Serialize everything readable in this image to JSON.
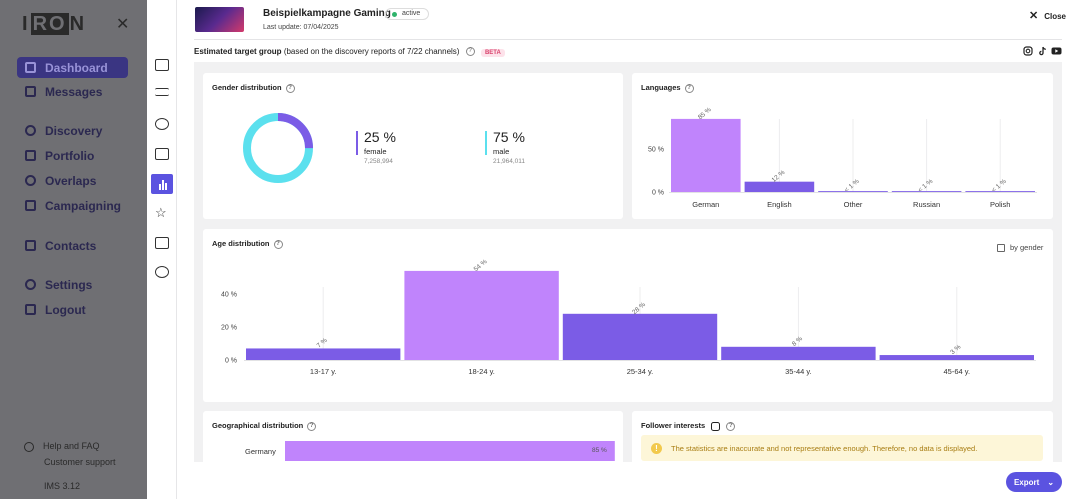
{
  "sidebar": {
    "logo_left": "I",
    "logo_mid": "RO",
    "logo_right": "N",
    "nav": [
      {
        "label": "Dashboard",
        "icon": "dashboard-icon"
      },
      {
        "label": "Messages",
        "icon": "messages-icon"
      },
      {
        "label": "Discovery",
        "icon": "discovery-icon"
      },
      {
        "label": "Portfolio",
        "icon": "portfolio-icon"
      },
      {
        "label": "Overlaps",
        "icon": "overlaps-icon"
      },
      {
        "label": "Campaigning",
        "icon": "campaigning-icon"
      },
      {
        "label": "Contacts",
        "icon": "contacts-icon"
      },
      {
        "label": "Settings",
        "icon": "settings-icon"
      },
      {
        "label": "Logout",
        "icon": "logout-icon"
      }
    ],
    "help": "Help and FAQ",
    "support": "Customer support",
    "version": "IMS 3.12"
  },
  "header": {
    "campaign_title": "Beispielkampagne Gaming",
    "status": "active",
    "last_update": "Last update: 07/04/2025",
    "close": "Close",
    "target_group_bold": "Estimated target group",
    "target_group_note": "(based on the discovery reports of 7/22 channels)",
    "beta": "BETA"
  },
  "gender": {
    "title": "Gender distribution",
    "female_pct": "25 %",
    "female_label": "female",
    "female_count": "7,258,994",
    "male_pct": "75 %",
    "male_label": "male",
    "male_count": "21,964,011",
    "female_color": "#7b5ce6",
    "male_color": "#5be0ee"
  },
  "languages_title": "Languages",
  "age_title": "Age distribution",
  "by_gender": "by gender",
  "geo": {
    "title": "Geographical distribution",
    "country": "Germany",
    "pct": "85 %"
  },
  "follower": {
    "title": "Follower interests",
    "warning": "The statistics are inaccurate and not representative enough. Therefore, no data is displayed."
  },
  "export": "Export",
  "chart_data": [
    {
      "type": "bar",
      "title": "Languages",
      "categories": [
        "German",
        "English",
        "Other",
        "Russian",
        "Polish"
      ],
      "values": [
        85,
        12,
        1,
        1,
        1
      ],
      "labels": [
        "85 %",
        "12 %",
        "< 1 %",
        "< 1 %",
        "< 1 %"
      ],
      "y_ticks": [
        "0 %",
        "50 %"
      ],
      "ylim": [
        0,
        100
      ],
      "colors": [
        "#c084fc",
        "#7b5ce6",
        "#7b5ce6",
        "#7b5ce6",
        "#7b5ce6"
      ]
    },
    {
      "type": "bar",
      "title": "Age distribution",
      "categories": [
        "13-17 y.",
        "18-24 y.",
        "25-34 y.",
        "35-44 y.",
        "45-64 y."
      ],
      "values": [
        7,
        54,
        28,
        8,
        3
      ],
      "labels": [
        "7 %",
        "54 %",
        "28 %",
        "8 %",
        "3 %"
      ],
      "y_ticks": [
        "0 %",
        "20 %",
        "40 %"
      ],
      "ylim": [
        0,
        60
      ],
      "colors": [
        "#7b5ce6",
        "#c084fc",
        "#7b5ce6",
        "#7b5ce6",
        "#7b5ce6"
      ]
    },
    {
      "type": "bar",
      "title": "Geographical distribution",
      "categories": [
        "Germany"
      ],
      "values": [
        85
      ],
      "colors": [
        "#c084fc"
      ]
    },
    {
      "type": "pie",
      "title": "Gender distribution",
      "categories": [
        "female",
        "male"
      ],
      "values": [
        25,
        75
      ],
      "colors": [
        "#7b5ce6",
        "#5be0ee"
      ]
    }
  ]
}
